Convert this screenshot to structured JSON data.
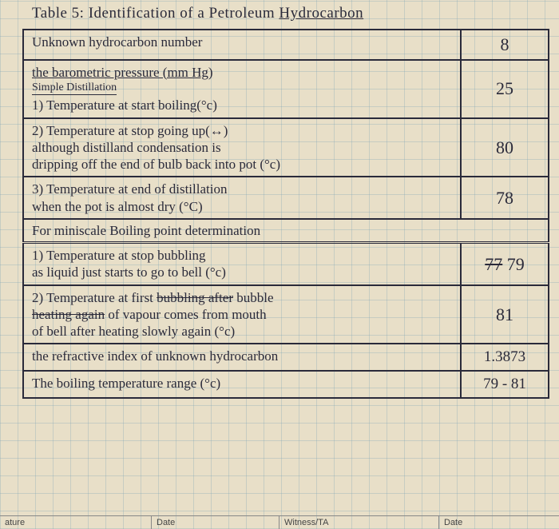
{
  "title_prefix": "Table 5: Identification of a Petroleum ",
  "title_underlined": "Hydrocarbon",
  "rows": {
    "r1_label": "Unknown hydrocarbon number",
    "r1_value": "8",
    "r2_label": "the barometric pressure (mm Hg)",
    "r2_sub": "Simple Distillation",
    "r3_label": "1) Temperature at start boiling(°c)",
    "r3_value": "25",
    "r4_label": "2) Temperature at stop going up(↔)\nalthough distilland condensation is\ndripping off the end of bulb back into pot (°c)",
    "r4_value": "80",
    "r5_label": "3) Temperature at end of distillation\nwhen the pot is almost dry (°C)",
    "r5_value": "78",
    "section2": "For miniscale Boiling point determination",
    "r6_label": "1) Temperature at stop bubbling\nas liquid just starts to go to bell (°c)",
    "r6_strike": "77",
    "r6_value": " 79",
    "r7_label": "2) Temperature at first bubbling after bubble\nheating again of vapour comes from mouth\nof bell after heating slowly again (°c)",
    "r7_value": "81",
    "r8_label": "the refractive index of unknown hydrocarbon",
    "r8_value": "1.3873",
    "r9_label": "The boiling temperature range (°c)",
    "r9_value": "79 - 81"
  },
  "footer": {
    "f1": "ature",
    "f2": "Date",
    "f3": "Witness/TA",
    "f4": "Date"
  },
  "colors": {
    "ink": "#2a2a3a",
    "paper": "#e8dfc8",
    "grid": "rgba(120,160,180,0.3)"
  }
}
